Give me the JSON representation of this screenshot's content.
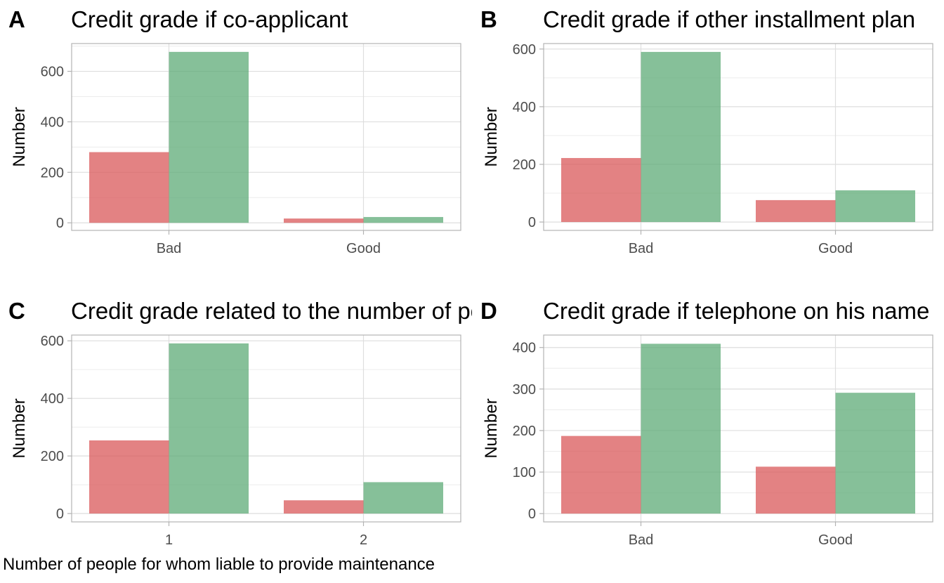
{
  "colors": {
    "bad": "#d9585a",
    "good": "#5dab77"
  },
  "chart_data": [
    {
      "type": "bar",
      "letter": "A",
      "title": "Credit grade if co-applicant",
      "xlabel": "",
      "ylabel": "Number",
      "categories": [
        "Bad",
        "Good"
      ],
      "series": [
        {
          "values": [
            280,
            17
          ]
        },
        {
          "values": [
            677,
            23
          ]
        }
      ],
      "yticks": [
        0,
        200,
        400,
        600
      ],
      "ylim": [
        -30,
        710
      ],
      "grid": true
    },
    {
      "type": "bar",
      "letter": "B",
      "title": "Credit grade if other installment plan",
      "xlabel": "",
      "ylabel": "Number",
      "categories": [
        "Bad",
        "Good"
      ],
      "series": [
        {
          "values": [
            222,
            76
          ]
        },
        {
          "values": [
            590,
            110
          ]
        }
      ],
      "yticks": [
        0,
        200,
        400,
        600
      ],
      "ylim": [
        -29,
        619
      ],
      "grid": true
    },
    {
      "type": "bar",
      "letter": "C",
      "title": "Credit grade related to the number of people for whom liable to provide maintenance",
      "xlabel": "Number of people for whom liable to provide maintenance",
      "ylabel": "Number",
      "categories": [
        "1",
        "2"
      ],
      "series": [
        {
          "values": [
            254,
            46
          ]
        },
        {
          "values": [
            591,
            109
          ]
        }
      ],
      "yticks": [
        0,
        200,
        400,
        600
      ],
      "ylim": [
        -29,
        620
      ],
      "grid": true
    },
    {
      "type": "bar",
      "letter": "D",
      "title": "Credit grade if telephone on his name",
      "xlabel": "",
      "ylabel": "Number",
      "categories": [
        "Bad",
        "Good"
      ],
      "series": [
        {
          "values": [
            187,
            113
          ]
        },
        {
          "values": [
            409,
            291
          ]
        }
      ],
      "yticks": [
        0,
        100,
        200,
        300,
        400
      ],
      "ylim": [
        -20,
        430
      ],
      "grid": true
    }
  ]
}
